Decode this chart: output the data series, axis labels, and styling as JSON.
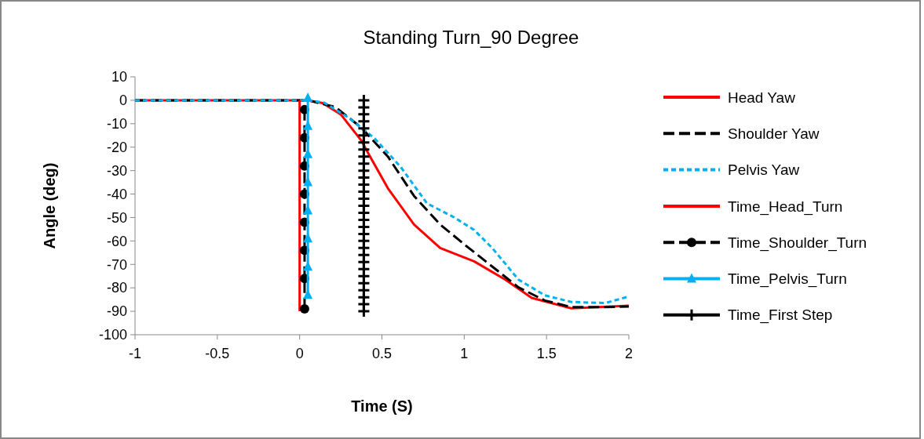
{
  "chart_data": {
    "type": "line",
    "title": "Standing Turn_90 Degree",
    "xlabel": "Time (S)",
    "ylabel": "Angle (deg)",
    "xlim": [
      -1,
      2
    ],
    "xticks": [
      -1,
      -0.5,
      0,
      0.5,
      1,
      1.5,
      2
    ],
    "ylim": [
      -100,
      10
    ],
    "yticks": [
      -100,
      -90,
      -80,
      -70,
      -60,
      -50,
      -40,
      -30,
      -20,
      -10,
      0,
      10
    ],
    "grid": false,
    "legend": "right",
    "marker": "none",
    "series": [
      {
        "name": "Head Yaw",
        "color": "#ff0000",
        "line_style": "solid",
        "x": [
          -1,
          -0.5,
          0,
          0.05,
          0.14,
          0.25,
          0.377,
          0.42,
          0.536,
          0.695,
          0.854,
          1.06,
          1.25,
          1.41,
          1.65,
          1.81,
          2
        ],
        "values": [
          0,
          0,
          0,
          0,
          -1.2,
          -6,
          -17.4,
          -23,
          -37.5,
          -53,
          -63,
          -68.7,
          -76.5,
          -84.3,
          -88.7,
          -88.2,
          -87.6
        ]
      },
      {
        "name": "Shoulder Yaw",
        "color": "#000000",
        "line_style": "dashed",
        "x": [
          -1,
          -0.5,
          0,
          0.05,
          0.218,
          0.377,
          0.536,
          0.695,
          0.854,
          1.01,
          1.17,
          1.33,
          1.49,
          1.65,
          1.85,
          2
        ],
        "values": [
          0,
          0,
          0,
          0,
          -2.9,
          -11.8,
          -24,
          -40.8,
          -53,
          -62,
          -70.9,
          -79.8,
          -85.4,
          -88.2,
          -88.2,
          -88
        ]
      },
      {
        "name": "Pelvis Yaw",
        "color": "#00b0f0",
        "line_style": "dotted",
        "x": [
          -1,
          -0.5,
          0,
          0.05,
          0.15,
          0.297,
          0.456,
          0.615,
          0.774,
          0.933,
          1.06,
          1.17,
          1.33,
          1.49,
          1.65,
          1.855,
          2
        ],
        "values": [
          0,
          0,
          0,
          0,
          -1,
          -7.4,
          -16.3,
          -28.5,
          -44,
          -49.7,
          -55.3,
          -63,
          -76.5,
          -83.2,
          -86,
          -86.5,
          -83.7
        ]
      },
      {
        "name": "Time_Head_Turn",
        "color": "#ff0000",
        "line_style": "solid",
        "marker": "none",
        "x": [
          0,
          0
        ],
        "values": [
          0,
          -90
        ]
      },
      {
        "name": "Time_Shoulder_Turn",
        "color": "#000000",
        "line_style": "dashed",
        "marker": "circle",
        "x": [
          0.03,
          0.03,
          0.03,
          0.03,
          0.03,
          0.03,
          0.03,
          0.03
        ],
        "values": [
          -4,
          -16,
          -28,
          -40,
          -52,
          -64,
          -76,
          -89
        ]
      },
      {
        "name": "Time_Pelvis_Turn",
        "color": "#00b0f0",
        "line_style": "solid",
        "marker": "triangle",
        "x": [
          0.05,
          0.05,
          0.05,
          0.05,
          0.05,
          0.05,
          0.05,
          0.05
        ],
        "values": [
          1,
          -11,
          -23,
          -35,
          -47,
          -59,
          -71,
          -83
        ]
      },
      {
        "name": "Time_First Step",
        "color": "#000000",
        "line_style": "solid",
        "marker": "cross",
        "x": [
          0.39,
          0.39,
          0.39,
          0.39,
          0.39,
          0.39,
          0.39,
          0.39,
          0.39,
          0.39,
          0.39,
          0.39,
          0.39,
          0.39,
          0.39,
          0.39,
          0.39,
          0.39,
          0.39,
          0.39,
          0.39,
          0.39,
          0.39,
          0.39,
          0.39,
          0.39,
          0.39,
          0.39,
          0.39,
          0.39,
          0.39
        ],
        "values": [
          0,
          -3,
          -6,
          -9,
          -12,
          -15,
          -18,
          -21,
          -24,
          -27,
          -30,
          -33,
          -36,
          -39,
          -42,
          -45,
          -48,
          -51,
          -54,
          -57,
          -60,
          -63,
          -66,
          -69,
          -72,
          -75,
          -78,
          -81,
          -84,
          -87,
          -90
        ]
      }
    ]
  }
}
